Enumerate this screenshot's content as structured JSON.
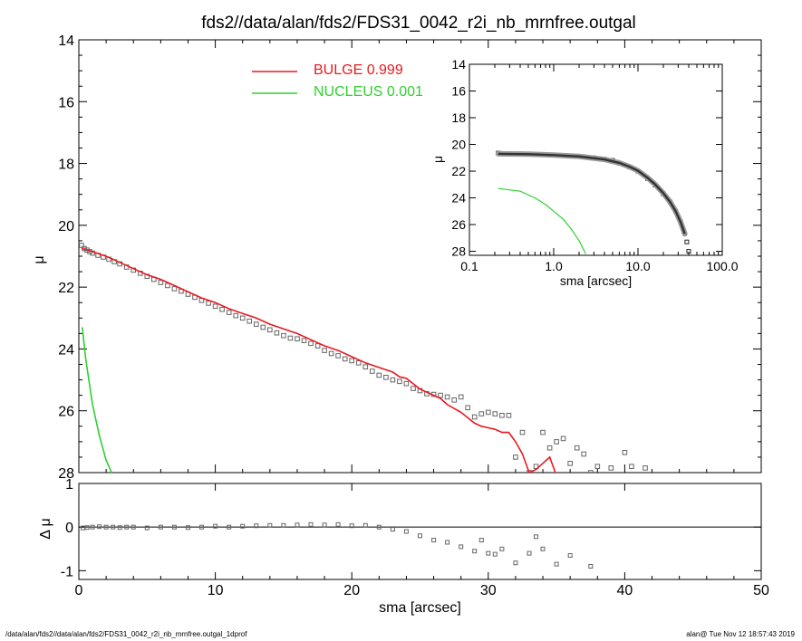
{
  "title": "fds2//data/alan/fds2/FDS31_0042_r2i_nb_mrnfree.outgal",
  "footer": {
    "left": "/data/alan/fds2//data/alan/fds2/FDS31_0042_r2i_nb_mrnfree.outgal_1dprof",
    "right": "alan@  Tue Nov 12 18:57:43 2019"
  },
  "colors": {
    "bulge": "#e8191f",
    "nucleus": "#2ed12e",
    "data": "#666666",
    "axis": "#000000"
  },
  "chart_data": [
    {
      "id": "main",
      "type": "scatter",
      "title": "",
      "xlabel": "",
      "ylabel": "μ",
      "xlim": [
        0,
        50
      ],
      "ylim": [
        28,
        14
      ],
      "y_inverted": true,
      "x_ticks": [
        0,
        10,
        20,
        30,
        40,
        50
      ],
      "y_ticks": [
        14,
        16,
        18,
        20,
        22,
        24,
        26,
        28
      ],
      "legend": {
        "placement": "top-center",
        "entries": [
          {
            "label": "BULGE  0.999",
            "color": "#e8191f"
          },
          {
            "label": "NUCLEUS  0.001",
            "color": "#2ed12e"
          }
        ]
      },
      "series": [
        {
          "name": "data",
          "style": "square-markers",
          "x": [
            0.2,
            0.4,
            0.6,
            0.8,
            1.0,
            1.4,
            1.8,
            2.2,
            2.6,
            3.0,
            3.5,
            4.0,
            4.5,
            5.0,
            5.5,
            6.0,
            6.5,
            7.0,
            7.5,
            8.0,
            8.5,
            9.0,
            9.5,
            10.0,
            10.5,
            11.0,
            11.5,
            12.0,
            12.5,
            13.0,
            13.5,
            14.0,
            14.5,
            15.0,
            15.5,
            16.0,
            16.5,
            17.0,
            17.5,
            18.0,
            18.5,
            19.0,
            19.5,
            20.0,
            20.5,
            21.0,
            21.5,
            22.0,
            22.5,
            23.0,
            23.5,
            24.0,
            24.5,
            25.0,
            25.5,
            26.0,
            26.5,
            27.0,
            27.5,
            28.0,
            28.5,
            29.0,
            29.5,
            30.0,
            30.5,
            31.0,
            31.5,
            32.0,
            32.5,
            33.0,
            33.5,
            34.0,
            34.5,
            35.0,
            35.5,
            36.0,
            36.5,
            37.0,
            37.5,
            38.0,
            39.0,
            40.0,
            40.5,
            41.5
          ],
          "y": [
            20.65,
            20.75,
            20.8,
            20.85,
            20.9,
            20.97,
            21.03,
            21.1,
            21.18,
            21.25,
            21.35,
            21.45,
            21.55,
            21.65,
            21.75,
            21.85,
            21.95,
            22.05,
            22.13,
            22.23,
            22.33,
            22.43,
            22.52,
            22.62,
            22.72,
            22.82,
            22.92,
            23.0,
            23.1,
            23.2,
            23.3,
            23.38,
            23.48,
            23.57,
            23.65,
            23.67,
            23.73,
            23.82,
            23.9,
            24.05,
            24.15,
            24.22,
            24.32,
            24.38,
            24.45,
            24.58,
            24.72,
            24.85,
            24.92,
            25.0,
            25.05,
            25.12,
            25.28,
            25.35,
            25.45,
            25.47,
            25.5,
            25.55,
            25.65,
            25.55,
            25.9,
            26.2,
            26.1,
            26.05,
            26.1,
            26.15,
            26.15,
            27.5,
            26.7,
            28.0,
            27.8,
            26.7,
            27.2,
            27.0,
            26.9,
            27.7,
            27.2,
            27.4,
            28.0,
            27.8,
            27.85,
            27.35,
            27.8,
            27.85
          ]
        },
        {
          "name": "BULGE",
          "style": "line",
          "x": [
            0.2,
            0.5,
            1,
            2,
            3,
            4,
            5,
            6,
            7,
            8,
            9,
            10,
            11,
            12,
            13,
            14,
            15,
            16,
            17,
            18,
            19,
            20,
            21,
            22,
            23,
            23.5,
            24,
            25,
            26,
            26.5,
            27,
            28,
            29,
            29.5,
            30,
            30.5,
            31,
            31.5,
            32,
            32.5,
            33,
            33.5,
            34,
            34.5,
            35
          ],
          "y": [
            20.75,
            20.78,
            20.85,
            21.0,
            21.2,
            21.4,
            21.6,
            21.75,
            21.95,
            22.15,
            22.35,
            22.5,
            22.7,
            22.85,
            23.0,
            23.2,
            23.35,
            23.5,
            23.7,
            23.9,
            24.05,
            24.25,
            24.45,
            24.6,
            24.75,
            24.9,
            24.95,
            25.3,
            25.5,
            25.6,
            25.8,
            26.05,
            26.4,
            26.5,
            26.55,
            26.6,
            26.7,
            26.7,
            27.0,
            27.4,
            28.0,
            27.9,
            27.7,
            27.5,
            28.1
          ]
        },
        {
          "name": "NUCLEUS",
          "style": "line",
          "x": [
            0.25,
            0.5,
            1.0,
            1.5,
            2.0,
            2.5
          ],
          "y": [
            23.3,
            24.3,
            25.8,
            26.8,
            27.6,
            28.1
          ]
        }
      ]
    },
    {
      "id": "residual",
      "type": "scatter",
      "title": "",
      "xlabel": "sma [arcsec]",
      "ylabel": "Δ μ",
      "xlim": [
        0,
        50
      ],
      "ylim": [
        -1.2,
        1.0
      ],
      "x_ticks": [
        0,
        10,
        20,
        30,
        40,
        50
      ],
      "y_ticks": [
        1,
        0,
        -1
      ],
      "zero_line": true,
      "series": [
        {
          "name": "residual",
          "style": "square-markers",
          "x": [
            0.3,
            0.6,
            1.0,
            1.5,
            2.0,
            2.5,
            3.0,
            3.5,
            4.0,
            5.0,
            6.0,
            7.0,
            8.0,
            9.0,
            10.0,
            11.0,
            12.0,
            13.0,
            14.0,
            15.0,
            16.0,
            17.0,
            18.0,
            19.0,
            20.0,
            21.0,
            22.0,
            23.0,
            24.0,
            25.0,
            26.0,
            27.0,
            28.0,
            29.0,
            29.5,
            30.0,
            30.5,
            31.0,
            32.0,
            33.0,
            33.5,
            34.0,
            35.0,
            36.0,
            37.5
          ],
          "y": [
            -0.02,
            -0.01,
            0.0,
            0.01,
            0.0,
            0.0,
            -0.01,
            0.0,
            0.0,
            -0.02,
            0.0,
            0.0,
            -0.01,
            0.0,
            0.02,
            0.0,
            0.02,
            0.03,
            0.04,
            0.04,
            0.05,
            0.06,
            0.05,
            0.06,
            0.03,
            0.04,
            0.0,
            -0.05,
            -0.1,
            -0.2,
            -0.3,
            -0.35,
            -0.45,
            -0.55,
            -0.3,
            -0.6,
            -0.62,
            -0.5,
            -0.82,
            -0.6,
            -0.22,
            -0.5,
            -0.85,
            -0.65,
            -0.9
          ]
        }
      ]
    },
    {
      "id": "inset",
      "type": "scatter",
      "title": "",
      "xlabel": "sma [arcsec]",
      "ylabel": "μ",
      "xscale": "log",
      "xlim": [
        0.1,
        100.0
      ],
      "ylim": [
        28.3,
        14
      ],
      "y_inverted": true,
      "x_tick_labels": [
        "0.1",
        "1.0",
        "10.0",
        "100.0"
      ],
      "y_ticks": [
        14,
        16,
        18,
        20,
        22,
        24,
        26,
        28
      ],
      "series": [
        {
          "name": "data",
          "style": "markers-dense",
          "x": [
            0.22,
            0.3,
            0.4,
            0.5,
            0.7,
            1.0,
            1.5,
            2.0,
            3.0,
            4.0,
            5.0,
            6.0,
            8.0,
            10.0,
            13.0,
            16.0,
            20.0,
            24.0,
            28.0,
            32.0,
            35.0,
            38.0,
            40.0
          ],
          "y": [
            20.65,
            20.68,
            20.7,
            20.72,
            20.75,
            20.8,
            20.85,
            20.9,
            21.0,
            21.1,
            21.2,
            21.4,
            21.7,
            22.0,
            22.55,
            23.05,
            23.7,
            24.3,
            25.0,
            25.8,
            26.5,
            27.3,
            28.0
          ]
        },
        {
          "name": "model",
          "style": "line",
          "x": [
            0.22,
            0.5,
            1.0,
            2.0,
            4.0,
            6.0,
            8.0,
            10.0,
            13.0,
            16.0,
            20.0,
            24.0,
            28.0,
            32.0,
            36.0
          ],
          "y": [
            20.7,
            20.73,
            20.8,
            20.9,
            21.12,
            21.38,
            21.68,
            21.97,
            22.5,
            23.0,
            23.65,
            24.3,
            25.0,
            25.8,
            26.7
          ]
        },
        {
          "name": "NUCLEUS",
          "style": "line",
          "x": [
            0.22,
            0.4,
            0.6,
            0.8,
            1.0,
            1.3,
            1.6,
            2.0,
            2.4
          ],
          "y": [
            23.3,
            23.5,
            24.0,
            24.5,
            25.0,
            25.6,
            26.3,
            27.2,
            28.2
          ]
        }
      ]
    }
  ]
}
